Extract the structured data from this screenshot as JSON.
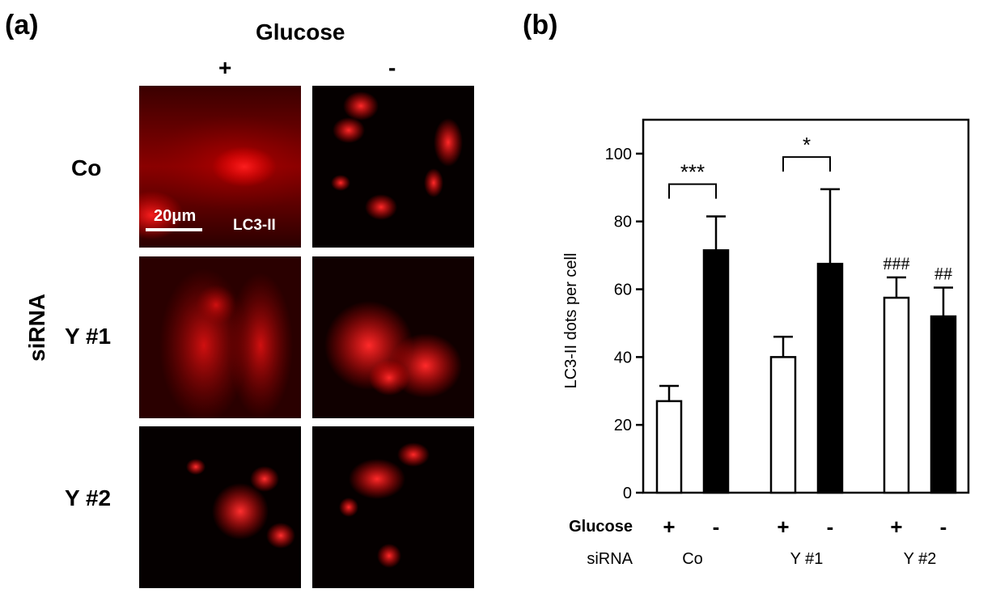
{
  "panel_a": {
    "letter": "(a)",
    "column_header": "Glucose",
    "column_signs": [
      "+",
      "-"
    ],
    "row_header": "siRNA",
    "row_labels": [
      "Co",
      "Y #1",
      "Y #2"
    ],
    "scale_bar_label": "20μm",
    "stain_label": "LC3-II",
    "stain_color": "#ff1a1a"
  },
  "panel_b": {
    "letter": "(b)",
    "row_glucose_label": "Glucose",
    "row_sirna_label": "siRNA"
  },
  "chart_data": {
    "type": "bar",
    "ylabel": "LC3-II dots per cell",
    "ylim": [
      0,
      110
    ],
    "yticks": [
      0,
      20,
      40,
      60,
      80,
      100
    ],
    "groups": [
      "Co",
      "Y #1",
      "Y #2"
    ],
    "glucose_signs": [
      "+",
      "-"
    ],
    "series": [
      {
        "fill": "#ffffff",
        "values": [
          27,
          40,
          57.5
        ],
        "errors": [
          4.5,
          6,
          6
        ]
      },
      {
        "fill": "#000000",
        "values": [
          71.5,
          67.5,
          52
        ],
        "errors": [
          10,
          22,
          8.5
        ]
      }
    ],
    "brackets": [
      {
        "group": 0,
        "label": "***",
        "y": 91
      },
      {
        "group": 1,
        "label": "*",
        "y": 99
      }
    ],
    "annotations": [
      {
        "group": 2,
        "series": 0,
        "label": "###"
      },
      {
        "group": 2,
        "series": 1,
        "label": "##"
      }
    ]
  }
}
